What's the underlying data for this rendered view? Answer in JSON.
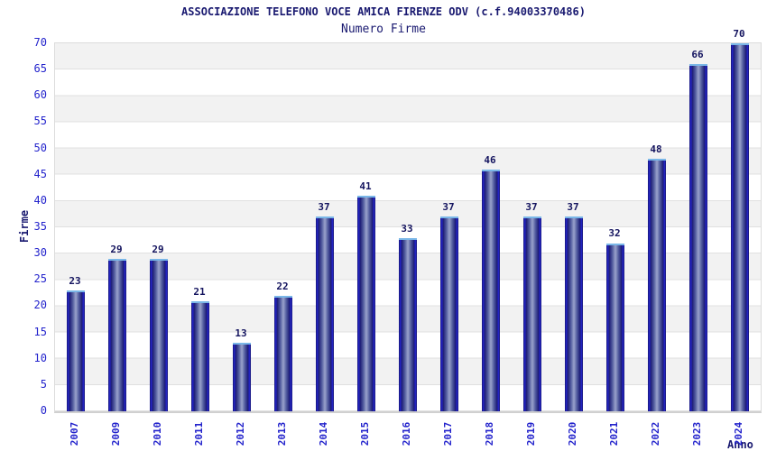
{
  "chart_data": {
    "type": "bar",
    "title": "ASSOCIAZIONE TELEFONO VOCE AMICA FIRENZE ODV (c.f.94003370486)",
    "subtitle": "Numero Firme",
    "xlabel": "Anno",
    "ylabel": "Firme",
    "categories": [
      "2007",
      "2009",
      "2010",
      "2011",
      "2012",
      "2013",
      "2014",
      "2015",
      "2016",
      "2017",
      "2018",
      "2019",
      "2020",
      "2021",
      "2022",
      "2023",
      "2024"
    ],
    "values": [
      23,
      29,
      29,
      21,
      13,
      22,
      37,
      41,
      33,
      37,
      46,
      37,
      37,
      32,
      48,
      66,
      70
    ],
    "ylim": [
      0,
      70
    ],
    "ytick_step": 5,
    "yticks": [
      0,
      5,
      10,
      15,
      20,
      25,
      30,
      35,
      40,
      45,
      50,
      55,
      60,
      65,
      70
    ],
    "grid": "horizontal gridlines with alternating gray/white bands",
    "legend": "none",
    "colors": {
      "title_text": "#191970",
      "axis_tick_text": "#2323cc",
      "value_label_text": "#14145f",
      "band_gray": "#f2f2f2",
      "gridline": "#e0e0e0",
      "bar_edge": "#16166b",
      "bar_stripe": "#2525cf",
      "bar_mid": "#555fa0",
      "bar_center_highlight": "#9aa3cc",
      "bar_top_border": "#7ab7e8"
    }
  }
}
